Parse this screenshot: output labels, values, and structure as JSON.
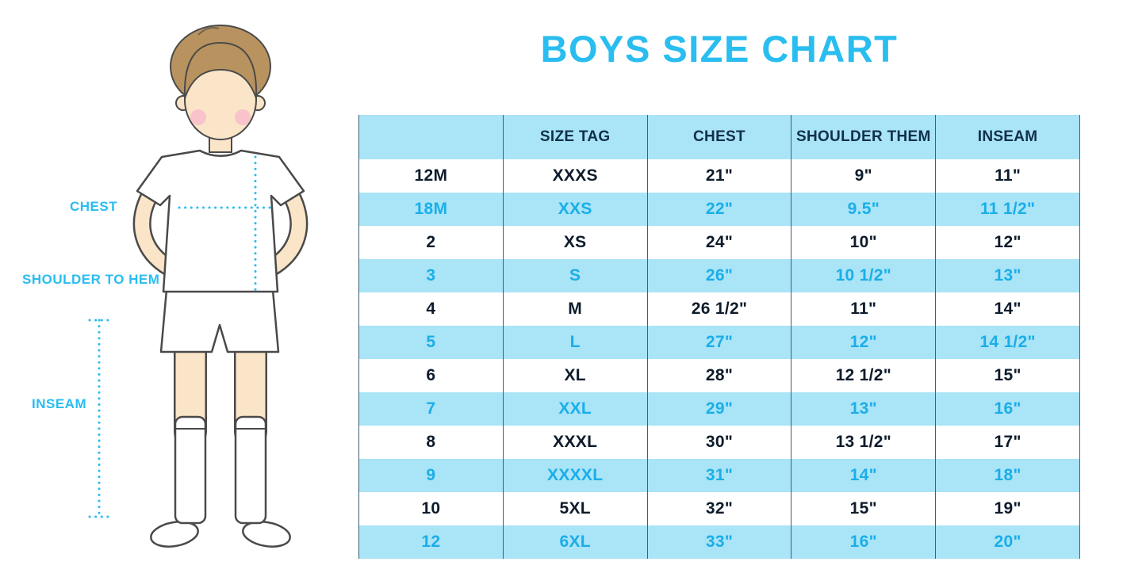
{
  "title": "BOYS SIZE CHART",
  "diagram": {
    "labels": {
      "chest": "CHEST",
      "shoulder_to_hem": "SHOULDER TO HEM",
      "inseam": "INSEAM"
    }
  },
  "colors": {
    "accent": "#29bdf0",
    "band": "#a9e4f7",
    "band_text": "#1aaee8",
    "dark_text": "#0d1b2b",
    "header_text": "#113049",
    "grid_line": "#3b6077"
  },
  "chart_data": {
    "type": "table",
    "title": "BOYS SIZE CHART",
    "columns": [
      "",
      "SIZE TAG",
      "CHEST",
      "SHOULDER THEM",
      "INSEAM"
    ],
    "rows": [
      [
        "12M",
        "XXXS",
        "21\"",
        "9\"",
        "11\""
      ],
      [
        "18M",
        "XXS",
        "22\"",
        "9.5\"",
        "11 1/2\""
      ],
      [
        "2",
        "XS",
        "24\"",
        "10\"",
        "12\""
      ],
      [
        "3",
        "S",
        "26\"",
        "10 1/2\"",
        "13\""
      ],
      [
        "4",
        "M",
        "26 1/2\"",
        "11\"",
        "14\""
      ],
      [
        "5",
        "L",
        "27\"",
        "12\"",
        "14 1/2\""
      ],
      [
        "6",
        "XL",
        "28\"",
        "12 1/2\"",
        "15\""
      ],
      [
        "7",
        "XXL",
        "29\"",
        "13\"",
        "16\""
      ],
      [
        "8",
        "XXXL",
        "30\"",
        "13 1/2\"",
        "17\""
      ],
      [
        "9",
        "XXXXL",
        "31\"",
        "14\"",
        "18\""
      ],
      [
        "10",
        "5XL",
        "32\"",
        "15\"",
        "19\""
      ],
      [
        "12",
        "6XL",
        "33\"",
        "16\"",
        "20\""
      ]
    ]
  }
}
